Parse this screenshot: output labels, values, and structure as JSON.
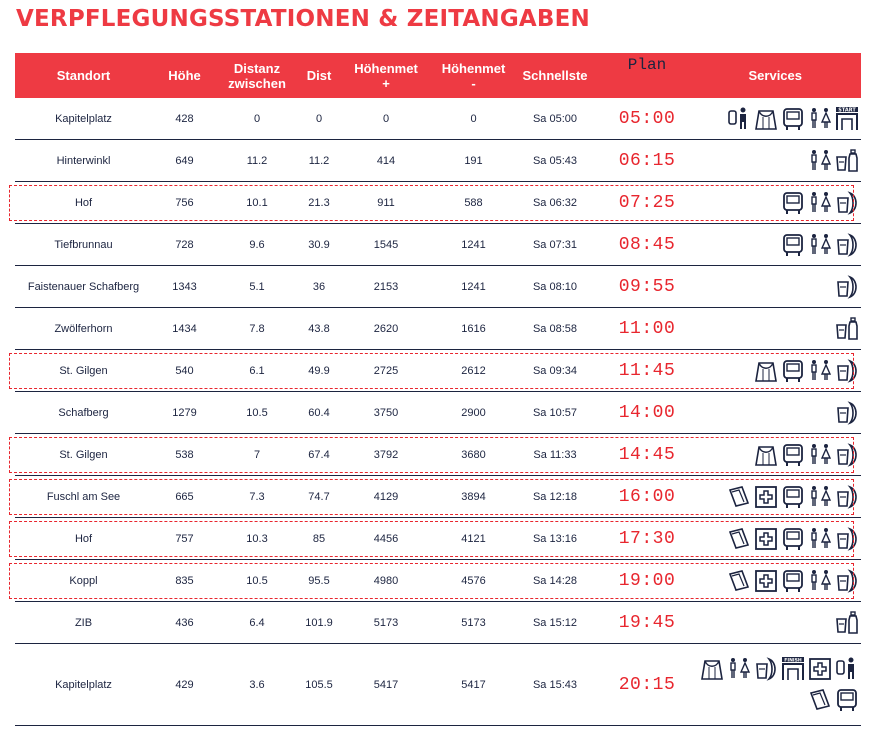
{
  "title": "VERPFLEGUNGSSTATIONEN & ZEITANGABEN",
  "headers": {
    "standort": "Standort",
    "hoehe": "Höhe",
    "distanz_line1": "Distanz",
    "distanz_line2": "zwischen",
    "dist": "Dist",
    "hplus_line1": "Höhenmet",
    "hplus_line2": "+",
    "hminus_line1": "Höhenmet",
    "hminus_line2": "-",
    "schnellste": "Schnellste",
    "plan": "Plan",
    "services": "Services"
  },
  "colors": {
    "accent": "#ee3a43",
    "plan_text": "#e8262e",
    "text": "#1c2440",
    "icon": "#1c2440"
  },
  "rows": [
    {
      "standort": "Kapitelplatz",
      "hoehe": "428",
      "distanz": "0",
      "dist": "0",
      "hplus": "0",
      "hminus": "0",
      "schnellste": "Sa 05:00",
      "plan": "05:00",
      "highlight": false,
      "services": [
        "bib-person-icon",
        "bag-icon",
        "bus-icon",
        "toilet-icon",
        "start-gate-icon"
      ]
    },
    {
      "standort": "Hinterwinkl",
      "hoehe": "649",
      "distanz": "11.2",
      "dist": "11.2",
      "hplus": "414",
      "hminus": "191",
      "schnellste": "Sa 05:43",
      "plan": "06:15",
      "highlight": false,
      "services": [
        "toilet-icon",
        "drinks-icon"
      ]
    },
    {
      "standort": "Hof",
      "hoehe": "756",
      "distanz": "10.1",
      "dist": "21.3",
      "hplus": "911",
      "hminus": "588",
      "schnellste": "Sa 06:32",
      "plan": "07:25",
      "highlight": true,
      "services": [
        "bus-icon",
        "toilet-icon",
        "food-icon"
      ]
    },
    {
      "standort": "Tiefbrunnau",
      "hoehe": "728",
      "distanz": "9.6",
      "dist": "30.9",
      "hplus": "1545",
      "hminus": "1241",
      "schnellste": "Sa 07:31",
      "plan": "08:45",
      "highlight": false,
      "services": [
        "bus-icon",
        "toilet-icon",
        "food-icon"
      ]
    },
    {
      "standort": "Faistenauer Schafberg",
      "hoehe": "1343",
      "distanz": "5.1",
      "dist": "36",
      "hplus": "2153",
      "hminus": "1241",
      "schnellste": "Sa 08:10",
      "plan": "09:55",
      "highlight": false,
      "services": [
        "food-icon"
      ]
    },
    {
      "standort": "Zwölferhorn",
      "hoehe": "1434",
      "distanz": "7.8",
      "dist": "43.8",
      "hplus": "2620",
      "hminus": "1616",
      "schnellste": "Sa 08:58",
      "plan": "11:00",
      "highlight": false,
      "services": [
        "drinks-icon"
      ]
    },
    {
      "standort": "St. Gilgen",
      "hoehe": "540",
      "distanz": "6.1",
      "dist": "49.9",
      "hplus": "2725",
      "hminus": "2612",
      "schnellste": "Sa 09:34",
      "plan": "11:45",
      "highlight": true,
      "services": [
        "bag-icon",
        "bus-icon",
        "toilet-icon",
        "food-icon"
      ]
    },
    {
      "standort": "Schafberg",
      "hoehe": "1279",
      "distanz": "10.5",
      "dist": "60.4",
      "hplus": "3750",
      "hminus": "2900",
      "schnellste": "Sa 10:57",
      "plan": "14:00",
      "highlight": false,
      "services": [
        "food-icon"
      ]
    },
    {
      "standort": "St. Gilgen",
      "hoehe": "538",
      "distanz": "7",
      "dist": "67.4",
      "hplus": "3792",
      "hminus": "3680",
      "schnellste": "Sa 11:33",
      "plan": "14:45",
      "highlight": true,
      "services": [
        "bag-icon",
        "bus-icon",
        "toilet-icon",
        "food-icon"
      ]
    },
    {
      "standort": "Fuschl am See",
      "hoehe": "665",
      "distanz": "7.3",
      "dist": "74.7",
      "hplus": "4129",
      "hminus": "3894",
      "schnellste": "Sa 12:18",
      "plan": "16:00",
      "highlight": true,
      "services": [
        "towel-icon",
        "first-aid-icon",
        "bus-icon",
        "toilet-icon",
        "food-icon"
      ]
    },
    {
      "standort": "Hof",
      "hoehe": "757",
      "distanz": "10.3",
      "dist": "85",
      "hplus": "4456",
      "hminus": "4121",
      "schnellste": "Sa 13:16",
      "plan": "17:30",
      "highlight": true,
      "services": [
        "towel-icon",
        "first-aid-icon",
        "bus-icon",
        "toilet-icon",
        "food-icon"
      ]
    },
    {
      "standort": "Koppl",
      "hoehe": "835",
      "distanz": "10.5",
      "dist": "95.5",
      "hplus": "4980",
      "hminus": "4576",
      "schnellste": "Sa 14:28",
      "plan": "19:00",
      "highlight": true,
      "services": [
        "towel-icon",
        "first-aid-icon",
        "bus-icon",
        "toilet-icon",
        "food-icon"
      ]
    },
    {
      "standort": "ZIB",
      "hoehe": "436",
      "distanz": "6.4",
      "dist": "101.9",
      "hplus": "5173",
      "hminus": "5173",
      "schnellste": "Sa 15:12",
      "plan": "19:45",
      "highlight": false,
      "services": [
        "drinks-icon"
      ]
    },
    {
      "standort": "Kapitelplatz",
      "hoehe": "429",
      "distanz": "3.6",
      "dist": "105.5",
      "hplus": "5417",
      "hminus": "5417",
      "schnellste": "Sa 15:43",
      "plan": "20:15",
      "highlight": false,
      "tall": true,
      "services": [
        "bag-icon",
        "toilet-icon",
        "food-icon",
        "finish-gate-icon",
        "first-aid-icon",
        "bib-person-icon",
        "towel-icon",
        "bus-icon"
      ]
    }
  ]
}
